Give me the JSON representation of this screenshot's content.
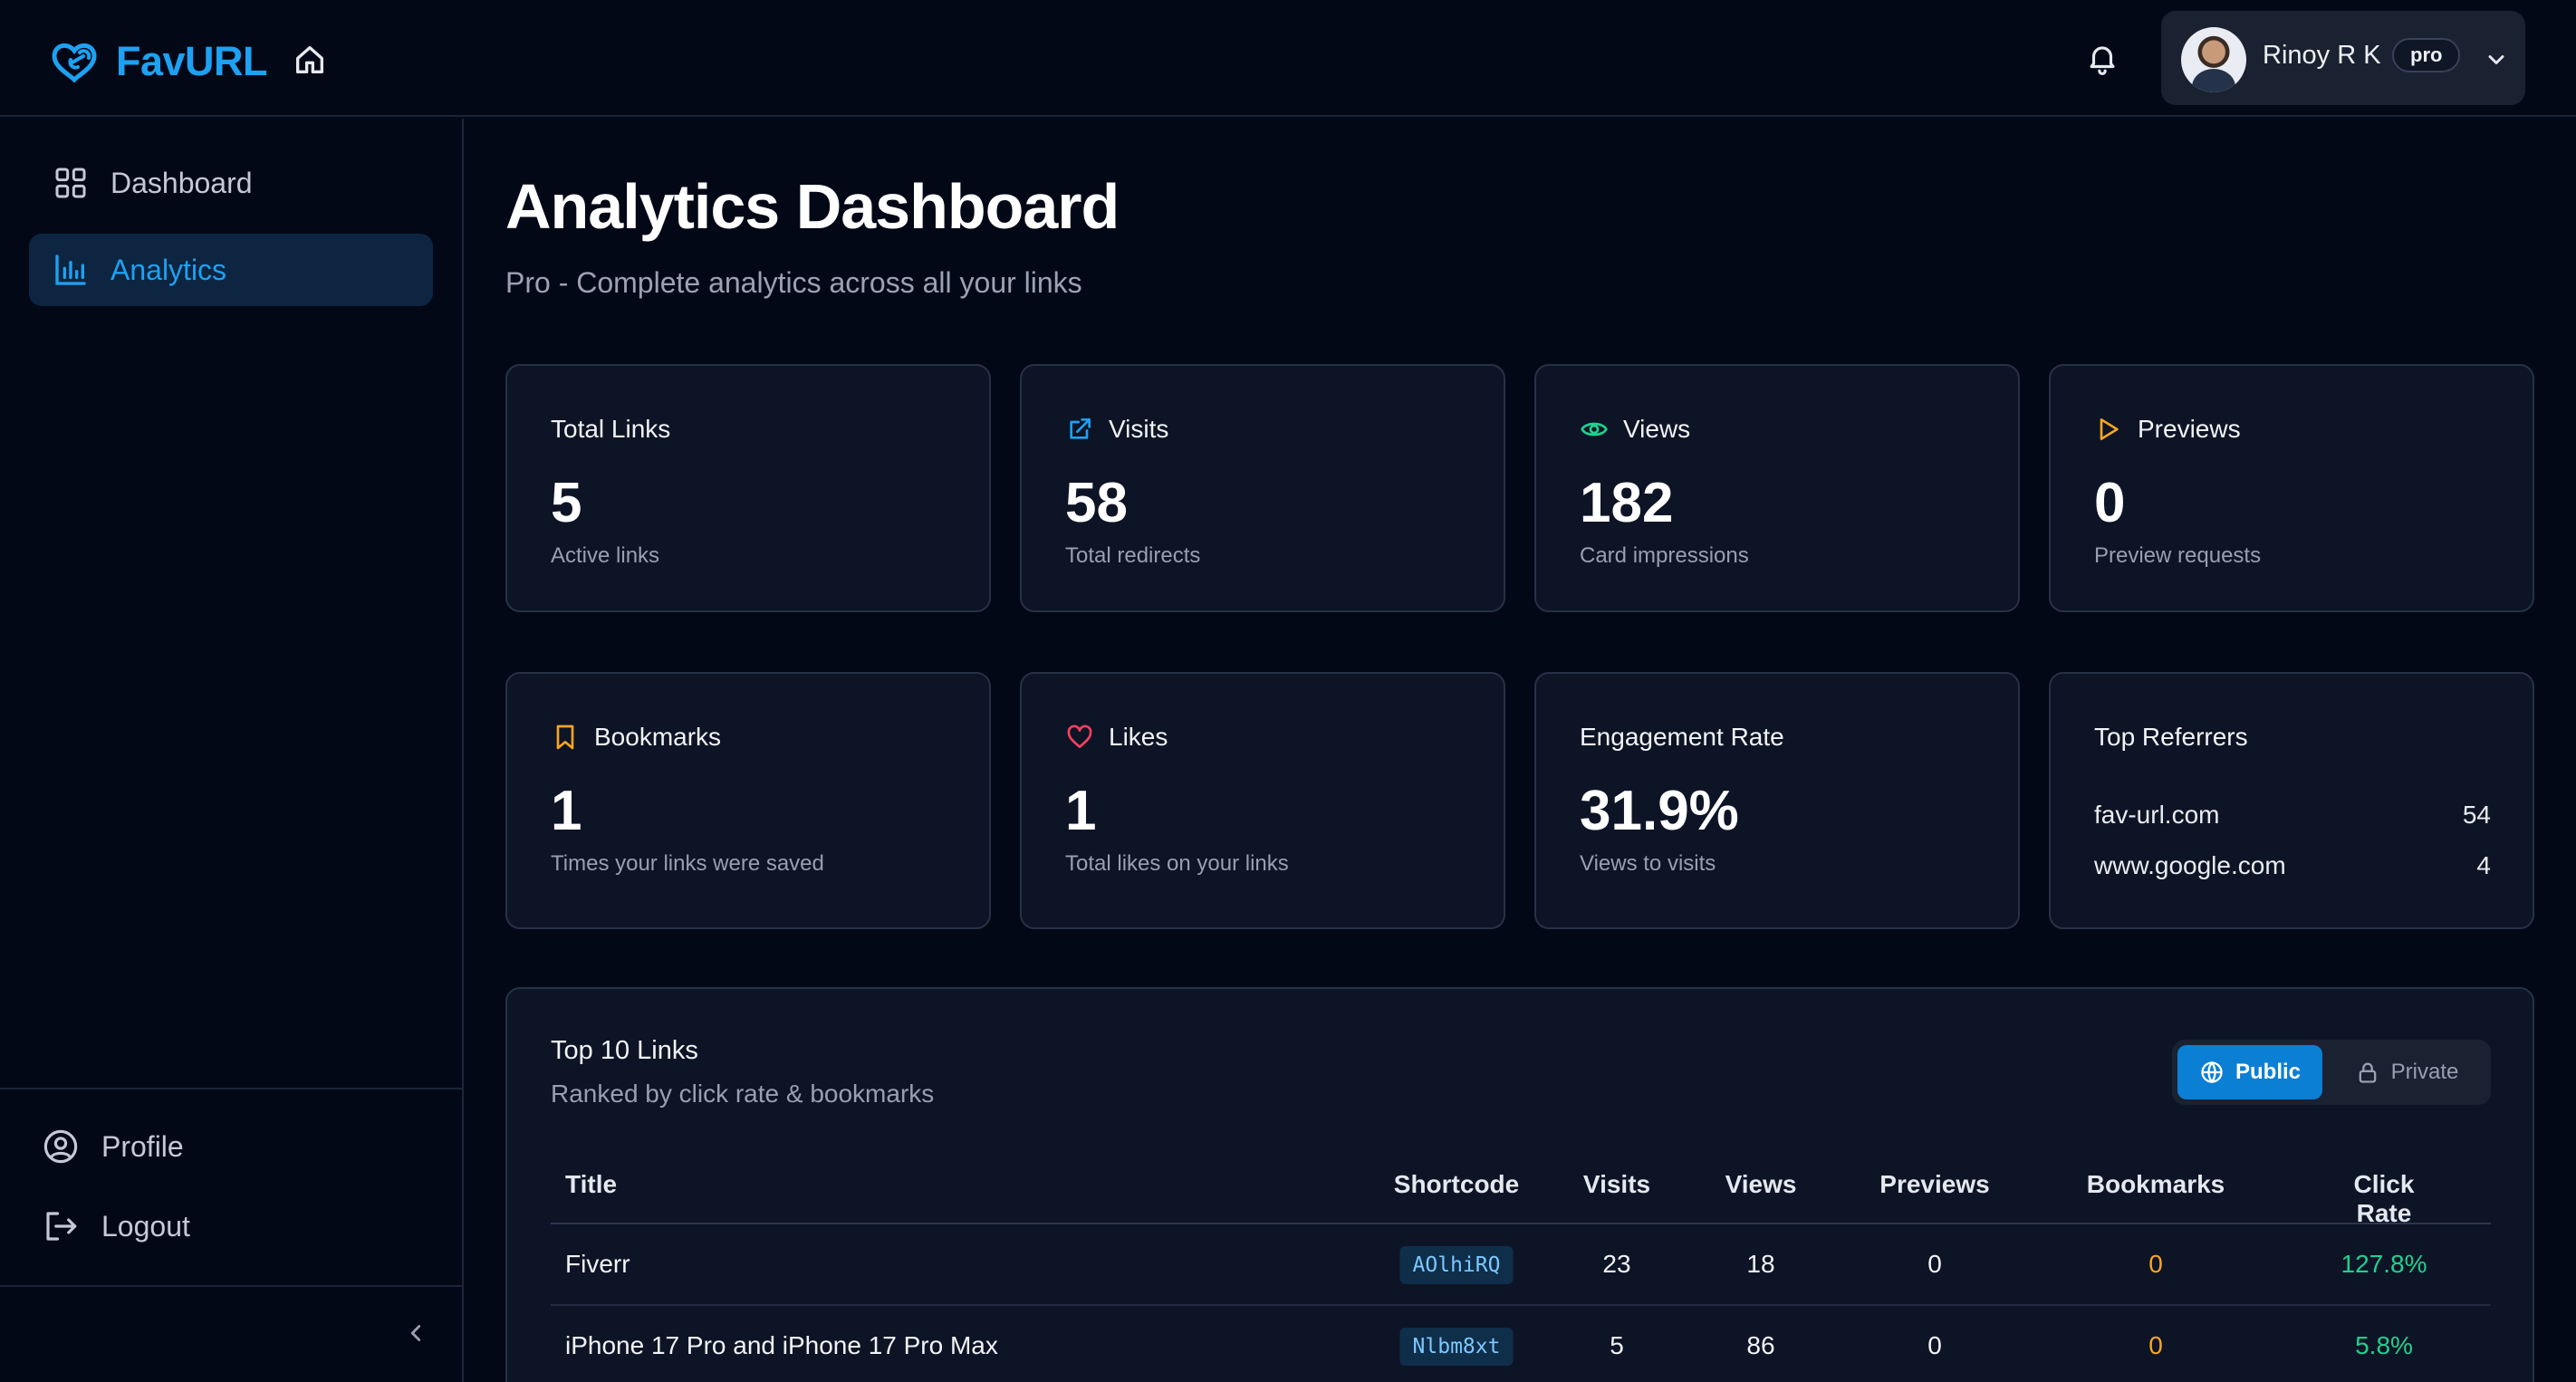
{
  "app": {
    "brand": "FavURL"
  },
  "header": {
    "user_name": "Rinoy R K",
    "plan_badge": "pro"
  },
  "sidebar": {
    "items": [
      {
        "label": "Dashboard",
        "icon": "grid-icon",
        "active": false
      },
      {
        "label": "Analytics",
        "icon": "bar-chart-icon",
        "active": true
      }
    ],
    "bottom": [
      {
        "label": "Profile",
        "icon": "user-circle-icon"
      },
      {
        "label": "Logout",
        "icon": "logout-icon"
      }
    ]
  },
  "page": {
    "title": "Analytics Dashboard",
    "subtitle": "Pro - Complete analytics across all your links"
  },
  "stats": [
    {
      "title": "Total Links",
      "value": "5",
      "desc": "Active links",
      "icon": ""
    },
    {
      "title": "Visits",
      "value": "58",
      "desc": "Total redirects",
      "icon": "external-link-icon"
    },
    {
      "title": "Views",
      "value": "182",
      "desc": "Card impressions",
      "icon": "eye-icon"
    },
    {
      "title": "Previews",
      "value": "0",
      "desc": "Preview requests",
      "icon": "play-icon"
    },
    {
      "title": "Bookmarks",
      "value": "1",
      "desc": "Times your links were saved",
      "icon": "bookmark-icon"
    },
    {
      "title": "Likes",
      "value": "1",
      "desc": "Total likes on your links",
      "icon": "heart-icon"
    },
    {
      "title": "Engagement Rate",
      "value": "31.9%",
      "desc": "Views to visits",
      "icon": ""
    }
  ],
  "referrers": {
    "title": "Top Referrers",
    "rows": [
      {
        "domain": "fav-url.com",
        "count": "54"
      },
      {
        "domain": "www.google.com",
        "count": "4"
      }
    ]
  },
  "top_links": {
    "title": "Top 10 Links",
    "subtitle": "Ranked by click rate & bookmarks",
    "toggle": {
      "public": "Public",
      "private": "Private",
      "selected": "Public"
    },
    "columns": [
      "Title",
      "Shortcode",
      "Visits",
      "Views",
      "Previews",
      "Bookmarks",
      "Click Rate"
    ],
    "rows": [
      {
        "title": "Fiverr",
        "shortcode": "AOlhiRQ",
        "visits": "23",
        "views": "18",
        "previews": "0",
        "bookmarks": "0",
        "click_rate": "127.8%"
      },
      {
        "title": "iPhone 17 Pro and iPhone 17 Pro Max",
        "shortcode": "Nlbm8xt",
        "visits": "5",
        "views": "86",
        "previews": "0",
        "bookmarks": "0",
        "click_rate": "5.8%"
      }
    ]
  },
  "colors": {
    "background": "#030817",
    "card": "#0d1425",
    "accent": "#1da1f2",
    "visits_icon": "#1da1f2",
    "views_icon": "#1fd18f",
    "previews_icon": "#f5a524",
    "bookmarks_icon": "#f5a524",
    "likes_icon": "#f43f5e",
    "bookmark_value": "#f5a524",
    "click_rate": "#1fd18f"
  }
}
